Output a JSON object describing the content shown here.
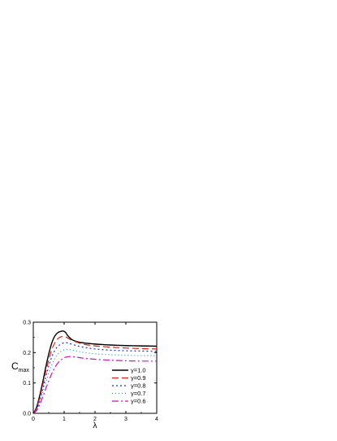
{
  "chart_data": {
    "type": "line",
    "xlabel": "λ",
    "ylabel": "C",
    "ylabel_subscript": "max",
    "xlim": [
      0,
      4
    ],
    "ylim": [
      0,
      0.3
    ],
    "xticks": [
      0,
      1,
      2,
      3,
      4
    ],
    "yticks": [
      0.0,
      0.1,
      0.2,
      0.3
    ],
    "xtick_labels": [
      "0",
      "1",
      "2",
      "3",
      "4"
    ],
    "ytick_labels": [
      "0.0",
      "0.1",
      "0.2",
      "0.3"
    ],
    "legend_position": "bottom-right",
    "grid": false,
    "series": [
      {
        "name": "γ=1.0",
        "color": "#000000",
        "dash": "solid",
        "x": [
          0.0,
          0.1,
          0.2,
          0.3,
          0.4,
          0.5,
          0.6,
          0.7,
          0.8,
          0.9,
          0.95,
          1.0,
          1.05,
          1.1,
          1.2,
          1.3,
          1.5,
          1.8,
          2.0,
          2.5,
          3.0,
          3.5,
          4.0
        ],
        "y": [
          0.0,
          0.018,
          0.055,
          0.1,
          0.15,
          0.195,
          0.232,
          0.255,
          0.266,
          0.27,
          0.271,
          0.27,
          0.266,
          0.258,
          0.247,
          0.24,
          0.234,
          0.23,
          0.228,
          0.225,
          0.223,
          0.222,
          0.221
        ]
      },
      {
        "name": "γ=0.9",
        "color": "#e0201b",
        "dash": "8,4",
        "x": [
          0.0,
          0.1,
          0.2,
          0.3,
          0.4,
          0.5,
          0.6,
          0.7,
          0.8,
          0.9,
          1.0,
          1.1,
          1.2,
          1.4,
          1.6,
          2.0,
          2.5,
          3.0,
          3.5,
          4.0
        ],
        "y": [
          0.0,
          0.015,
          0.048,
          0.09,
          0.135,
          0.175,
          0.21,
          0.232,
          0.246,
          0.252,
          0.253,
          0.249,
          0.243,
          0.235,
          0.228,
          0.222,
          0.218,
          0.215,
          0.213,
          0.212
        ]
      },
      {
        "name": "γ=0.8",
        "color": "#2030e0",
        "dash": "2,3",
        "x": [
          0.0,
          0.1,
          0.2,
          0.3,
          0.4,
          0.5,
          0.6,
          0.7,
          0.8,
          0.9,
          1.0,
          1.1,
          1.2,
          1.4,
          1.6,
          2.0,
          2.5,
          3.0,
          3.5,
          4.0
        ],
        "y": [
          0.0,
          0.012,
          0.04,
          0.078,
          0.118,
          0.155,
          0.186,
          0.208,
          0.221,
          0.228,
          0.232,
          0.232,
          0.229,
          0.223,
          0.218,
          0.212,
          0.208,
          0.206,
          0.205,
          0.204
        ]
      },
      {
        "name": "γ=0.7",
        "color": "#14a0a0",
        "dash": "1,3",
        "x": [
          0.0,
          0.1,
          0.2,
          0.3,
          0.4,
          0.5,
          0.6,
          0.7,
          0.8,
          0.9,
          1.0,
          1.1,
          1.2,
          1.4,
          1.6,
          2.0,
          2.5,
          3.0,
          3.5,
          4.0
        ],
        "y": [
          0.0,
          0.01,
          0.034,
          0.066,
          0.1,
          0.132,
          0.16,
          0.181,
          0.196,
          0.204,
          0.209,
          0.21,
          0.209,
          0.205,
          0.201,
          0.196,
          0.193,
          0.191,
          0.19,
          0.19
        ]
      },
      {
        "name": "γ=0.6",
        "color": "#d010c0",
        "dash": "8,3,2,3",
        "x": [
          0.0,
          0.1,
          0.2,
          0.3,
          0.4,
          0.5,
          0.6,
          0.7,
          0.8,
          0.9,
          1.0,
          1.1,
          1.2,
          1.4,
          1.6,
          2.0,
          2.5,
          3.0,
          3.5,
          4.0
        ],
        "y": [
          0.0,
          0.008,
          0.027,
          0.052,
          0.08,
          0.107,
          0.131,
          0.151,
          0.166,
          0.176,
          0.183,
          0.186,
          0.187,
          0.185,
          0.182,
          0.178,
          0.175,
          0.173,
          0.172,
          0.172
        ]
      }
    ]
  }
}
